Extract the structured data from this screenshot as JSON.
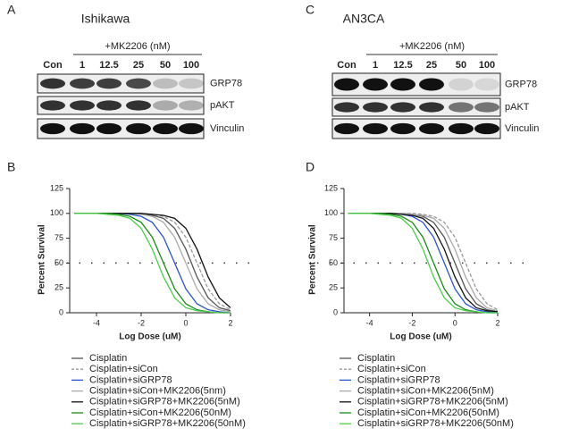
{
  "panels": [
    {
      "letter": "A",
      "title": "Ishikawa",
      "treatment": "+MK2206 (nM)",
      "lanes": [
        "Con",
        "1",
        "12.5",
        "25",
        "50",
        "100"
      ],
      "rows": [
        "GRP78",
        "pAKT",
        "Vinculin"
      ]
    },
    {
      "letter": "C",
      "title": "AN3CA",
      "treatment": "+MK2206 (nM)",
      "lanes": [
        "Con",
        "1",
        "12.5",
        "25",
        "50",
        "100"
      ],
      "rows": [
        "GRP78",
        "pAKT",
        "Vinculin"
      ]
    }
  ],
  "chart_data": [
    {
      "type": "line",
      "panel_label": "B",
      "x_label": "Log Dose (uM)",
      "y_label": "Percent Survival",
      "xlim": [
        -5.2,
        2
      ],
      "xticks": [
        -4,
        -2,
        0,
        2
      ],
      "ylim": [
        0,
        125
      ],
      "yticks": [
        0,
        25,
        50,
        75,
        100,
        125
      ],
      "hline": 50,
      "x": [
        -5,
        -4.5,
        -4,
        -3.5,
        -3,
        -2.5,
        -2,
        -1.5,
        -1,
        -0.5,
        0,
        0.5,
        1,
        1.5,
        2
      ],
      "series": [
        {
          "name": "Cisplatin",
          "color": "#555555",
          "values": [
            100,
            100,
            100,
            100,
            100,
            100,
            99,
            98,
            95,
            85,
            64,
            36,
            15,
            5,
            2
          ]
        },
        {
          "name": "Cisplatin+siCon",
          "color": "#999999",
          "linestyle": "dashed",
          "values": [
            100,
            100,
            100,
            100,
            100,
            100,
            100,
            99,
            97,
            91,
            76,
            50,
            24,
            9,
            3
          ]
        },
        {
          "name": "Cisplatin+siGRP78",
          "color": "#2a55c8",
          "values": [
            100,
            100,
            100,
            100,
            100,
            99,
            97,
            91,
            76,
            50,
            24,
            9,
            3,
            1,
            0
          ]
        },
        {
          "name": "Cisplatin+siCon+MK2206(5nm)",
          "color": "#aaaaaa",
          "values": [
            100,
            100,
            100,
            100,
            100,
            100,
            99,
            97,
            91,
            76,
            50,
            24,
            9,
            3,
            1
          ]
        },
        {
          "name": "Cisplatin+siGRP78+MK2206(5nM)",
          "color": "#111111",
          "values": [
            100,
            100,
            100,
            100,
            100,
            100,
            100,
            99,
            98,
            95,
            85,
            64,
            36,
            15,
            5
          ]
        },
        {
          "name": "Cisplatin+siCon+MK2206(50nM)",
          "color": "#1b8a1b",
          "values": [
            100,
            100,
            100,
            100,
            99,
            97,
            91,
            76,
            50,
            24,
            9,
            3,
            1,
            0,
            0
          ]
        },
        {
          "name": "Cisplatin+siGRP78+MK2206(50nM)",
          "color": "#4ccc4c",
          "values": [
            100,
            100,
            100,
            99,
            98,
            95,
            85,
            64,
            36,
            15,
            5,
            2,
            1,
            0,
            0
          ]
        }
      ]
    },
    {
      "type": "line",
      "panel_label": "D",
      "x_label": "Log Dose (uM)",
      "y_label": "Percent Survival",
      "xlim": [
        -5.2,
        2
      ],
      "xticks": [
        -4,
        -2,
        0,
        2
      ],
      "ylim": [
        0,
        125
      ],
      "yticks": [
        0,
        25,
        50,
        75,
        100,
        125
      ],
      "hline": 50,
      "x": [
        -5,
        -4.5,
        -4,
        -3.5,
        -3,
        -2.5,
        -2,
        -1.5,
        -1,
        -0.5,
        0,
        0.5,
        1,
        1.5,
        2
      ],
      "series": [
        {
          "name": "Cisplatin",
          "color": "#555555",
          "values": [
            100,
            100,
            100,
            100,
            100,
            100,
            99,
            97,
            91,
            76,
            50,
            24,
            9,
            3,
            1
          ]
        },
        {
          "name": "Cisplatin+siCon",
          "color": "#999999",
          "linestyle": "dashed",
          "values": [
            100,
            100,
            100,
            100,
            100,
            100,
            100,
            99,
            97,
            91,
            76,
            50,
            24,
            9,
            3
          ]
        },
        {
          "name": "Cisplatin+siGRP78",
          "color": "#2a55c8",
          "values": [
            100,
            100,
            100,
            100,
            100,
            99,
            97,
            91,
            76,
            50,
            24,
            9,
            3,
            1,
            0
          ]
        },
        {
          "name": "Cisplatin+siCon+MK2206(5nM)",
          "color": "#aaaaaa",
          "values": [
            100,
            100,
            100,
            100,
            100,
            100,
            99,
            98,
            95,
            85,
            64,
            36,
            15,
            5,
            2
          ]
        },
        {
          "name": "Cisplatin+siGRP78+MK2206(5nM)",
          "color": "#111111",
          "values": [
            100,
            100,
            100,
            100,
            100,
            99,
            98,
            95,
            85,
            64,
            36,
            15,
            5,
            2,
            1
          ]
        },
        {
          "name": "Cisplatin+siCon+MK2206(50nM)",
          "color": "#1b8a1b",
          "values": [
            100,
            100,
            100,
            100,
            99,
            97,
            91,
            76,
            50,
            24,
            9,
            3,
            1,
            0,
            0
          ]
        },
        {
          "name": "Cisplatin+siGRP78+MK2206(50nM)",
          "color": "#4ccc4c",
          "values": [
            100,
            100,
            100,
            99,
            98,
            95,
            85,
            64,
            36,
            15,
            5,
            2,
            1,
            0,
            0
          ]
        }
      ]
    }
  ]
}
